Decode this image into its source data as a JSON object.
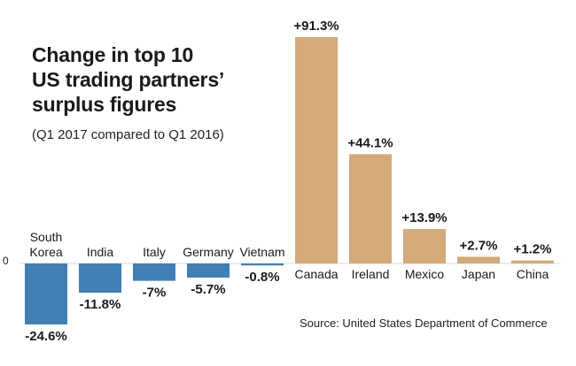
{
  "title_lines": [
    "Change in top 10",
    "US trading partners’",
    "surplus figures"
  ],
  "subtitle": "(Q1 2017 compared to Q1 2016)",
  "source": "Source: United States Department of Commerce",
  "zero_label": "0",
  "colors": {
    "positive": "#d4aa78",
    "negative": "#3f7fb5"
  },
  "chart_data": {
    "type": "bar",
    "title": "Change in top 10 US trading partners’ surplus figures",
    "subtitle": "(Q1 2017 compared to Q1 2016)",
    "ylabel": "",
    "xlabel": "",
    "unit": "%",
    "ylim": [
      -24.6,
      91.3
    ],
    "grid": false,
    "categories": [
      "South Korea",
      "India",
      "Italy",
      "Germany",
      "Vietnam",
      "Canada",
      "Ireland",
      "Mexico",
      "Japan",
      "China"
    ],
    "category_lines": [
      [
        "South",
        "Korea"
      ],
      [
        "India"
      ],
      [
        "Italy"
      ],
      [
        "Germany"
      ],
      [
        "Vietnam"
      ],
      [
        "Canada"
      ],
      [
        "Ireland"
      ],
      [
        "Mexico"
      ],
      [
        "Japan"
      ],
      [
        "China"
      ]
    ],
    "values": [
      -24.6,
      -11.8,
      -7.0,
      -5.7,
      -0.8,
      91.3,
      44.1,
      13.9,
      2.7,
      1.2
    ],
    "value_labels": [
      "-24.6%",
      "-11.8%",
      "-7%",
      "-5.7%",
      "-0.8%",
      "+91.3%",
      "+44.1%",
      "+13.9%",
      "+2.7%",
      "+1.2%"
    ]
  }
}
